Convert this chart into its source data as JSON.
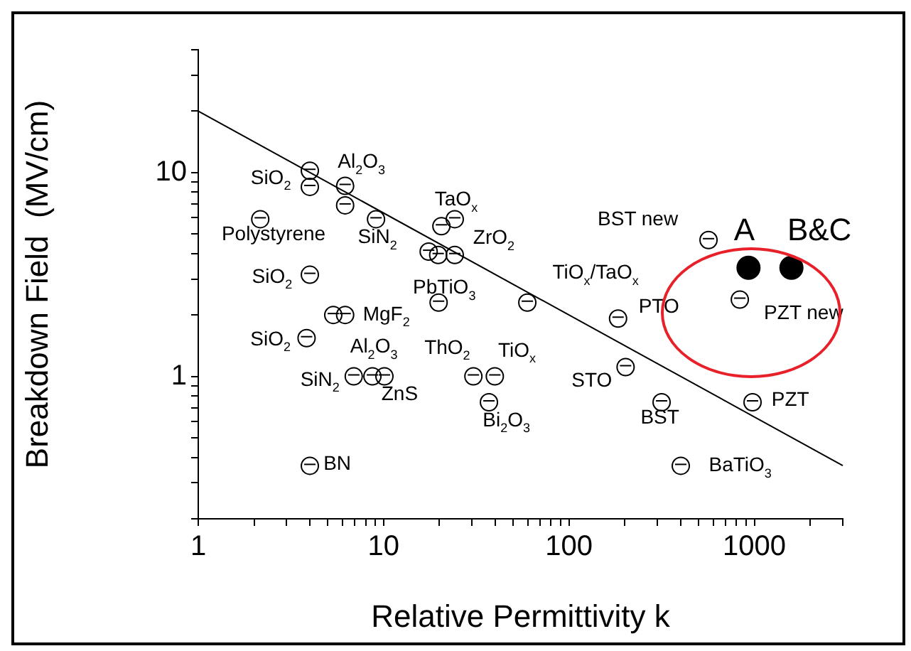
{
  "chart_data": {
    "type": "scatter",
    "xlabel": "Relative Permittivity k",
    "ylabel": "Breakdown Field  (MV/cm)",
    "log": "xy",
    "marker": "circle",
    "xlim": [
      1,
      3000
    ],
    "ylim": [
      0.2,
      40
    ],
    "xticks": [
      1,
      {
        "value": 2,
        "label": null
      },
      {
        "value": 3,
        "label": null
      },
      {
        "value": 4,
        "label": null
      },
      {
        "value": 5,
        "label": null
      },
      {
        "value": 6,
        "label": null
      },
      {
        "value": 7,
        "label": null
      },
      {
        "value": 8,
        "label": null
      },
      {
        "value": 9,
        "label": null
      },
      10,
      {
        "value": 20,
        "label": null
      },
      {
        "value": 30,
        "label": null
      },
      {
        "value": 40,
        "label": null
      },
      {
        "value": 50,
        "label": null
      },
      {
        "value": 60,
        "label": null
      },
      {
        "value": 70,
        "label": null
      },
      {
        "value": 80,
        "label": null
      },
      {
        "value": 90,
        "label": null
      },
      100,
      {
        "value": 200,
        "label": null
      },
      {
        "value": 300,
        "label": null
      },
      {
        "value": 400,
        "label": null
      },
      {
        "value": 500,
        "label": null
      },
      {
        "value": 600,
        "label": null
      },
      {
        "value": 700,
        "label": null
      },
      {
        "value": 800,
        "label": null
      },
      {
        "value": 900,
        "label": null
      },
      1000,
      {
        "value": 2000,
        "label": null
      },
      {
        "value": 3000,
        "label": null
      }
    ],
    "yticks": [
      {
        "value": 0.2,
        "label": null
      },
      {
        "value": 0.3,
        "label": null
      },
      {
        "value": 0.4,
        "label": null
      },
      {
        "value": 0.5,
        "label": null
      },
      {
        "value": 0.6,
        "label": null
      },
      {
        "value": 0.7,
        "label": null
      },
      {
        "value": 0.8,
        "label": null
      },
      {
        "value": 0.9,
        "label": null
      },
      1,
      {
        "value": 2,
        "label": null
      },
      {
        "value": 3,
        "label": null
      },
      {
        "value": 4,
        "label": null
      },
      {
        "value": 5,
        "label": null
      },
      {
        "value": 6,
        "label": null
      },
      {
        "value": 7,
        "label": null
      },
      {
        "value": 8,
        "label": null
      },
      {
        "value": 9,
        "label": null
      },
      10,
      {
        "value": 20,
        "label": null
      },
      {
        "value": 30,
        "label": null
      },
      {
        "value": 40,
        "label": null
      }
    ],
    "series": [
      {
        "color": "#000000",
        "x": [
          4,
          4,
          6.2,
          6.2,
          2.16,
          9.1,
          20.5,
          24.2,
          17.5,
          19.7,
          24.2,
          4,
          19.8,
          59.6,
          5.35,
          6.2,
          3.84,
          6.9,
          8.7,
          10.1,
          30.5,
          39.8,
          37,
          4,
          202,
          184,
          316,
          401,
          566,
          835,
          978
        ],
        "values": [
          10.2,
          8.5,
          8.6,
          6.9,
          5.9,
          5.9,
          5.45,
          5.9,
          4.09,
          3.94,
          3.94,
          3.15,
          2.3,
          2.3,
          2.0,
          2.0,
          1.54,
          1.0,
          1.0,
          1.0,
          1.0,
          1.0,
          0.746,
          0.364,
          1.11,
          1.92,
          0.746,
          0.364,
          4.66,
          2.38,
          0.746
        ]
      },
      {
        "color": "#000000",
        "x": [
          930,
          1585
        ],
        "values": [
          3.41,
          3.41
        ]
      },
      {
        "type": "line",
        "marker": "none",
        "color": "#000000",
        "x": [
          1,
          3000
        ],
        "values": [
          20,
          0.365
        ]
      }
    ],
    "annotations": [
      {
        "text": "SiO$_{2}$",
        "x": 4,
        "y": 8.5
      },
      {
        "text": "Al$_{2}$O$_{3}$",
        "x": 6.2,
        "y": 8.6
      },
      {
        "text": "Polystyrene",
        "x": 2.16,
        "y": 5.9
      },
      {
        "text": "SiN$_{2}$",
        "x": 9.1,
        "y": 5.9
      },
      {
        "text": "TaO$_{x}$",
        "x": 24.2,
        "y": 5.9
      },
      {
        "text": "ZrO$_{2}$",
        "x": 24.2,
        "y": 3.94
      },
      {
        "text": "SiO$_{2}$",
        "x": 4,
        "y": 3.15
      },
      {
        "text": "PbTiO$_{3}$",
        "x": 19.8,
        "y": 2.3
      },
      {
        "text": "TiO$_{x}$/TaO$_{x}$",
        "x": 59.6,
        "y": 2.3
      },
      {
        "text": "MgF$_{2}$",
        "x": 6.2,
        "y": 2.0
      },
      {
        "text": "PTO",
        "x": 184,
        "y": 1.92
      },
      {
        "text": "PZT new",
        "x": 835,
        "y": 2.38
      },
      {
        "text": "SiO$_{2}$",
        "x": 3.84,
        "y": 1.54
      },
      {
        "text": "Al$_{2}$O$_{3}$",
        "x": 8.7,
        "y": 1.0
      },
      {
        "text": "ThO$_{2}$",
        "x": 30.5,
        "y": 1.0
      },
      {
        "text": "TiO$_{x}$",
        "x": 39.8,
        "y": 1.0
      },
      {
        "text": "SiN$_{2}$",
        "x": 6.9,
        "y": 1.0
      },
      {
        "text": "ZnS",
        "x": 10.1,
        "y": 1.0
      },
      {
        "text": "STO",
        "x": 202,
        "y": 1.11
      },
      {
        "text": "Bi$_{2}$O$_{3}$",
        "x": 37,
        "y": 0.746
      },
      {
        "text": "BST",
        "x": 316,
        "y": 0.746
      },
      {
        "text": "PZT",
        "x": 978,
        "y": 0.746
      },
      {
        "text": "BN",
        "x": 4,
        "y": 0.364
      },
      {
        "text": "BaTiO$_{3}$",
        "x": 401,
        "y": 0.364
      },
      {
        "text": "BST new",
        "x": 566,
        "y": 4.66
      },
      {
        "text": "A",
        "x": 930,
        "y": 3.41
      },
      {
        "text": "B&C",
        "x": 1585,
        "y": 3.41
      }
    ]
  }
}
